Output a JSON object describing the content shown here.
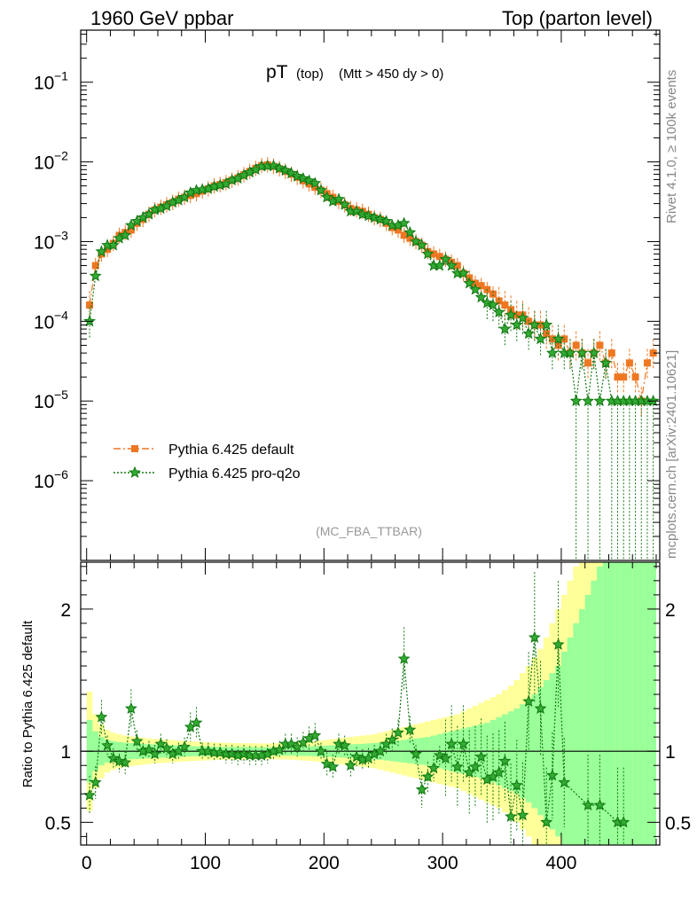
{
  "header": {
    "left": "1960 GeV ppbar",
    "right": "Top (parton level)"
  },
  "side_labels": {
    "rivet": "Rivet 4.1.0, ≥ 100k events",
    "mcplots": "mcplots.cern.ch [arXiv:2401.10621]"
  },
  "analysis_tag": "(MC_FBA_TTBAR)",
  "colors": {
    "default": "#ee7722",
    "proq2o": "#117711",
    "band_yellow": "#ffff99",
    "band_green": "#99ff99"
  },
  "chart_data": [
    {
      "type": "line",
      "title_main": "pT",
      "title_sub": "(top)",
      "title_cut": "(Mtt > 450 dy > 0)",
      "xlabel": "",
      "ylabel": "",
      "yscale": "log",
      "xlim": [
        -5,
        483
      ],
      "ylim": [
        1e-07,
        0.45
      ],
      "x_ticks": [
        0,
        100,
        200,
        300,
        400
      ],
      "y_ticks": [
        {
          "value": 1e-06,
          "base": "10",
          "exp": "−6"
        },
        {
          "value": 1e-05,
          "base": "10",
          "exp": "−5"
        },
        {
          "value": 0.0001,
          "base": "10",
          "exp": "−4"
        },
        {
          "value": 0.001,
          "base": "10",
          "exp": "−3"
        },
        {
          "value": 0.01,
          "base": "10",
          "exp": "−2"
        },
        {
          "value": 0.1,
          "base": "10",
          "exp": "−1"
        }
      ],
      "legend": [
        {
          "label": "Pythia 6.425 default",
          "marker": "square",
          "style": "dashdot"
        },
        {
          "label": "Pythia 6.425 pro-q2o",
          "marker": "star",
          "style": "dotted"
        }
      ],
      "legend_position": "center-left",
      "bin_width": 5,
      "x": [
        2.5,
        7.5,
        12.5,
        17.5,
        22.5,
        27.5,
        32.5,
        37.5,
        42.5,
        47.5,
        52.5,
        57.5,
        62.5,
        67.5,
        72.5,
        77.5,
        82.5,
        87.5,
        92.5,
        97.5,
        102.5,
        107.5,
        112.5,
        117.5,
        122.5,
        127.5,
        132.5,
        137.5,
        142.5,
        147.5,
        152.5,
        157.5,
        162.5,
        167.5,
        172.5,
        177.5,
        182.5,
        187.5,
        192.5,
        197.5,
        202.5,
        207.5,
        212.5,
        217.5,
        222.5,
        227.5,
        232.5,
        237.5,
        242.5,
        247.5,
        252.5,
        257.5,
        262.5,
        267.5,
        272.5,
        277.5,
        282.5,
        287.5,
        292.5,
        297.5,
        302.5,
        307.5,
        312.5,
        317.5,
        322.5,
        327.5,
        332.5,
        337.5,
        342.5,
        347.5,
        352.5,
        357.5,
        362.5,
        367.5,
        372.5,
        377.5,
        382.5,
        387.5,
        392.5,
        397.5,
        402.5,
        407.5,
        412.5,
        417.5,
        422.5,
        427.5,
        432.5,
        437.5,
        442.5,
        447.5,
        452.5,
        457.5,
        462.5,
        467.5,
        472.5,
        477.5
      ],
      "series": [
        {
          "name": "Pythia 6.425 default",
          "values": [
            0.00016,
            0.0005,
            0.0007,
            0.0008,
            0.00095,
            0.0012,
            0.0013,
            0.0014,
            0.0017,
            0.0019,
            0.0022,
            0.0025,
            0.0027,
            0.0029,
            0.0031,
            0.0034,
            0.0036,
            0.0038,
            0.004,
            0.0043,
            0.0046,
            0.005,
            0.0052,
            0.0055,
            0.0059,
            0.0063,
            0.0069,
            0.0076,
            0.0083,
            0.009,
            0.0092,
            0.0088,
            0.0082,
            0.0076,
            0.007,
            0.0064,
            0.0058,
            0.0053,
            0.0048,
            0.0044,
            0.004,
            0.0036,
            0.0032,
            0.0029,
            0.0026,
            0.0025,
            0.0024,
            0.0022,
            0.002,
            0.0019,
            0.0017,
            0.0015,
            0.0014,
            0.0012,
            0.0011,
            0.001,
            0.0009,
            0.00075,
            0.0007,
            0.00065,
            0.0006,
            0.00055,
            0.0005,
            0.0004,
            0.00035,
            0.0003,
            0.00028,
            0.00025,
            0.00022,
            0.00018,
            0.00016,
            0.00014,
            0.00012,
            0.00012,
            0.0001,
            9e-05,
            9e-05,
            7e-05,
            6e-05,
            5e-05,
            6e-05,
            4e-05,
            5e-05,
            4e-05,
            3e-05,
            4e-05,
            5e-05,
            3e-05,
            4e-05,
            2e-05,
            2e-05,
            3e-05,
            2e-05,
            1e-05,
            3e-05,
            4e-05
          ]
        },
        {
          "name": "Pythia 6.425 pro-q2o",
          "values": [
            0.0001,
            0.00037,
            0.00075,
            0.0009,
            0.0009,
            0.0011,
            0.0012,
            0.0016,
            0.0018,
            0.002,
            0.0022,
            0.0025,
            0.0026,
            0.0028,
            0.0031,
            0.0033,
            0.0036,
            0.0041,
            0.0044,
            0.0045,
            0.0046,
            0.0049,
            0.0051,
            0.0053,
            0.0059,
            0.0062,
            0.0068,
            0.0074,
            0.008,
            0.0088,
            0.0089,
            0.0089,
            0.0083,
            0.0078,
            0.0072,
            0.0066,
            0.0062,
            0.0058,
            0.0054,
            0.0044,
            0.0036,
            0.0032,
            0.0034,
            0.0029,
            0.0024,
            0.0024,
            0.0022,
            0.0021,
            0.002,
            0.0019,
            0.0018,
            0.0016,
            0.0016,
            0.0017,
            0.0013,
            0.001,
            0.0009,
            0.0007,
            0.0005,
            0.0005,
            0.0006,
            0.0005,
            0.0004,
            0.0004,
            0.0003,
            0.00025,
            0.0002,
            0.00017,
            0.00016,
            0.00013,
            8e-05,
            0.00012,
            9e-05,
            0.00011,
            7e-05,
            9e-05,
            6e-05,
            9e-05,
            4e-05,
            6e-05,
            4e-05,
            4e-05,
            1e-05,
            4e-05,
            1e-05,
            4e-05,
            1e-05,
            3e-05,
            1e-05,
            1e-05,
            1e-05,
            1e-05,
            1e-05,
            1e-05,
            1e-05,
            1e-05
          ]
        }
      ]
    },
    {
      "type": "line",
      "ylabel": "Ratio to Pythia 6.425 default",
      "xlabel": "",
      "xlim": [
        -5,
        483
      ],
      "ylim": [
        0.34,
        2.33
      ],
      "x_ticks": [
        0,
        100,
        200,
        300,
        400
      ],
      "y_ticks": [
        0.5,
        1,
        2
      ],
      "reference_line": 1,
      "bands": {
        "bin_width": 5,
        "x_start": 0,
        "green_halfwidth": [
          0.22,
          0.14,
          0.1,
          0.08,
          0.07,
          0.065,
          0.06,
          0.057,
          0.055,
          0.052,
          0.05,
          0.048,
          0.046,
          0.044,
          0.042,
          0.04,
          0.038,
          0.036,
          0.035,
          0.034,
          0.033,
          0.032,
          0.031,
          0.03,
          0.03,
          0.03,
          0.03,
          0.029,
          0.028,
          0.028,
          0.028,
          0.028,
          0.029,
          0.03,
          0.031,
          0.032,
          0.033,
          0.034,
          0.036,
          0.038,
          0.04,
          0.042,
          0.044,
          0.046,
          0.048,
          0.05,
          0.052,
          0.055,
          0.058,
          0.06,
          0.065,
          0.07,
          0.075,
          0.08,
          0.085,
          0.09,
          0.095,
          0.1,
          0.11,
          0.12,
          0.13,
          0.14,
          0.15,
          0.16,
          0.17,
          0.18,
          0.19,
          0.2,
          0.22,
          0.24,
          0.26,
          0.28,
          0.3,
          0.33,
          0.36,
          0.4,
          0.45,
          0.5,
          0.55,
          0.6,
          0.7,
          0.8,
          0.9,
          1.0,
          1.1,
          1.2,
          1.3,
          1.4,
          1.5,
          1.6,
          1.7,
          1.8,
          1.9,
          2.0,
          2.0,
          2.0
        ],
        "yellow_halfwidth": [
          0.42,
          0.26,
          0.19,
          0.15,
          0.13,
          0.12,
          0.11,
          0.105,
          0.1,
          0.095,
          0.09,
          0.087,
          0.084,
          0.081,
          0.078,
          0.075,
          0.072,
          0.07,
          0.068,
          0.066,
          0.064,
          0.062,
          0.06,
          0.059,
          0.058,
          0.058,
          0.057,
          0.056,
          0.056,
          0.055,
          0.055,
          0.056,
          0.057,
          0.058,
          0.06,
          0.062,
          0.065,
          0.068,
          0.071,
          0.075,
          0.08,
          0.085,
          0.09,
          0.095,
          0.1,
          0.105,
          0.11,
          0.115,
          0.12,
          0.13,
          0.14,
          0.15,
          0.16,
          0.17,
          0.18,
          0.19,
          0.2,
          0.21,
          0.22,
          0.23,
          0.24,
          0.25,
          0.26,
          0.28,
          0.3,
          0.32,
          0.34,
          0.36,
          0.38,
          0.4,
          0.43,
          0.46,
          0.5,
          0.55,
          0.6,
          0.66,
          0.72,
          0.8,
          0.9,
          1.0,
          1.1,
          1.2,
          1.3,
          1.4,
          1.5,
          1.6,
          1.7,
          1.8,
          1.9,
          2.0,
          2.0,
          2.0,
          2.0,
          2.0,
          2.0,
          2.0
        ]
      },
      "series": [
        {
          "name": "Pythia 6.425 pro-q2o / default",
          "x": [
            2.5,
            7.5,
            12.5,
            17.5,
            22.5,
            27.5,
            32.5,
            37.5,
            42.5,
            47.5,
            52.5,
            57.5,
            62.5,
            67.5,
            72.5,
            77.5,
            82.5,
            87.5,
            92.5,
            97.5,
            102.5,
            107.5,
            112.5,
            117.5,
            122.5,
            127.5,
            132.5,
            137.5,
            142.5,
            147.5,
            152.5,
            157.5,
            162.5,
            167.5,
            172.5,
            177.5,
            182.5,
            187.5,
            192.5,
            197.5,
            202.5,
            207.5,
            212.5,
            217.5,
            222.5,
            227.5,
            232.5,
            237.5,
            242.5,
            247.5,
            252.5,
            257.5,
            262.5,
            267.5,
            272.5,
            277.5,
            282.5,
            287.5,
            292.5,
            297.5,
            302.5,
            307.5,
            312.5,
            317.5,
            322.5,
            327.5,
            332.5,
            337.5,
            342.5,
            347.5,
            352.5,
            357.5,
            362.5,
            367.5,
            372.5,
            377.5,
            382.5,
            387.5,
            392.5,
            397.5,
            402.5,
            422.5,
            432.5,
            447.5,
            452.5
          ],
          "values": [
            0.69,
            0.78,
            1.24,
            1.04,
            0.95,
            0.93,
            0.92,
            1.3,
            1.07,
            1.0,
            1.01,
            0.98,
            1.05,
            1.02,
            0.98,
            1.0,
            1.03,
            1.17,
            1.2,
            1.0,
            1.0,
            0.99,
            0.99,
            0.98,
            0.98,
            0.97,
            0.98,
            0.97,
            0.97,
            0.97,
            0.98,
            1.0,
            1.01,
            1.05,
            1.05,
            1.03,
            1.06,
            1.09,
            1.11,
            1.0,
            0.91,
            0.89,
            1.05,
            1.04,
            0.9,
            0.96,
            0.94,
            0.95,
            0.98,
            1.0,
            1.05,
            1.08,
            1.13,
            1.65,
            1.15,
            0.98,
            0.73,
            0.82,
            0.88,
            0.97,
            0.95,
            1.05,
            0.89,
            1.05,
            0.85,
            0.89,
            0.96,
            0.8,
            0.82,
            0.85,
            0.93,
            0.54,
            0.76,
            0.55,
            1.35,
            1.8,
            1.3,
            0.5,
            0.83,
            1.75,
            0.78,
            0.62,
            0.62,
            0.5,
            0.5
          ]
        }
      ]
    }
  ]
}
